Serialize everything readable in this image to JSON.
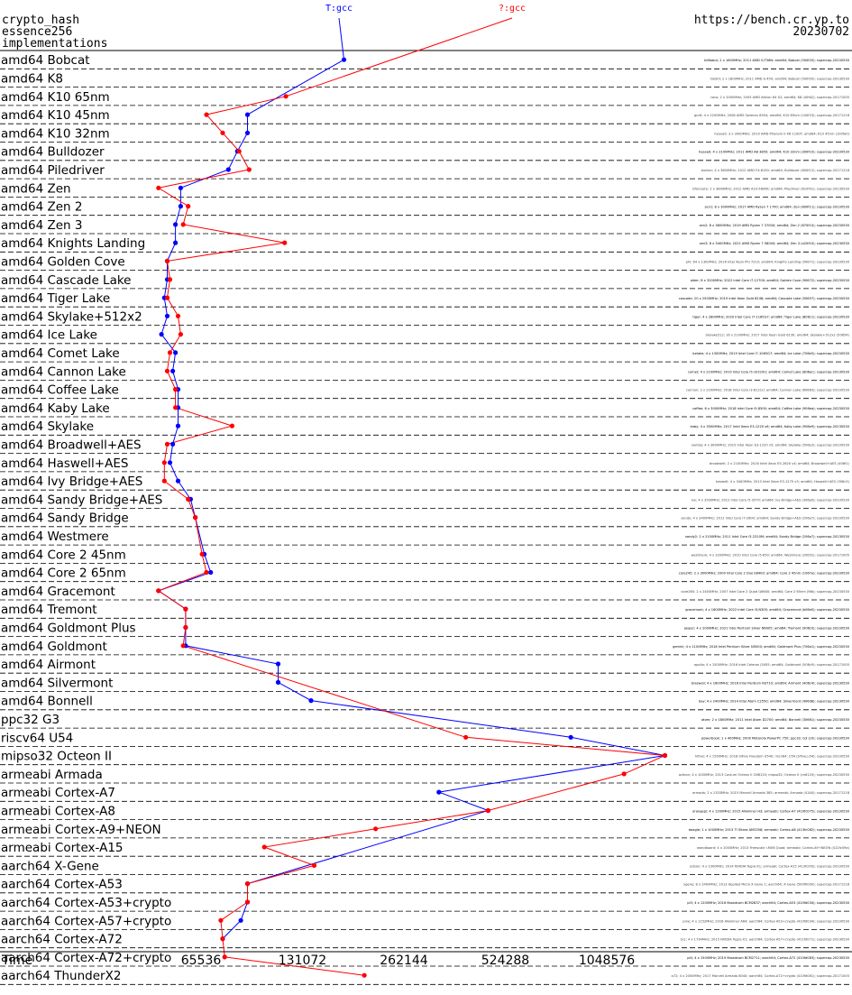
{
  "header": {
    "left_lines": [
      "crypto_hash",
      "essence256",
      "implementations"
    ],
    "right_lines": [
      "https://bench.cr.yp.to",
      "20230702"
    ]
  },
  "chart_data": {
    "type": "scatter",
    "x_scale": "log2",
    "xlabel": "Time",
    "x_ticks": [
      65536,
      131072,
      262144,
      524288,
      1048576
    ],
    "x_range": [
      32768,
      2097152
    ],
    "series": [
      {
        "name": "T:gcc",
        "color": "#0000ff"
      },
      {
        "name": "?:gcc",
        "color": "#ff0000"
      }
    ],
    "platforms": [
      {
        "label": "amd64 Bobcat",
        "best": 174000,
        "best_gcc": null
      },
      {
        "label": "amd64 K8",
        "best": null,
        "best_gcc": null
      },
      {
        "label": "amd64 K10 65nm",
        "best": null,
        "best_gcc": 117000
      },
      {
        "label": "amd64 K10 45nm",
        "best": 90000,
        "best_gcc": 68000
      },
      {
        "label": "amd64 K10 32nm",
        "best": 90000,
        "best_gcc": 76000
      },
      {
        "label": "amd64 Bulldozer",
        "best": 84000,
        "best_gcc": 85000
      },
      {
        "label": "amd64 Piledriver",
        "best": 79000,
        "best_gcc": 91000
      },
      {
        "label": "amd64 Zen",
        "best": 57000,
        "best_gcc": 49000
      },
      {
        "label": "amd64 Zen 2",
        "best": 57000,
        "best_gcc": 60000
      },
      {
        "label": "amd64 Zen 3",
        "best": 55000,
        "best_gcc": 58000
      },
      {
        "label": "amd64 Knights Landing",
        "best": 55000,
        "best_gcc": 116000
      },
      {
        "label": "amd64 Golden Cove",
        "best": 52000,
        "best_gcc": 52000
      },
      {
        "label": "amd64 Cascade Lake",
        "best": 52000,
        "best_gcc": 53000
      },
      {
        "label": "amd64 Tiger Lake",
        "best": 51000,
        "best_gcc": 52000
      },
      {
        "label": "amd64 Skylake+512x2",
        "best": 52000,
        "best_gcc": 56000
      },
      {
        "label": "amd64 Ice Lake",
        "best": 50000,
        "best_gcc": 57000
      },
      {
        "label": "amd64 Comet Lake",
        "best": 55000,
        "best_gcc": 53000
      },
      {
        "label": "amd64 Cannon Lake",
        "best": 54000,
        "best_gcc": 52000
      },
      {
        "label": "amd64 Coffee Lake",
        "best": 56000,
        "best_gcc": 55000
      },
      {
        "label": "amd64 Kaby Lake",
        "best": 56000,
        "best_gcc": 55000
      },
      {
        "label": "amd64 Skylake",
        "best": 56000,
        "best_gcc": 81000
      },
      {
        "label": "amd64 Broadwell+AES",
        "best": 54000,
        "best_gcc": 52000
      },
      {
        "label": "amd64 Haswell+AES",
        "best": 53000,
        "best_gcc": 51000
      },
      {
        "label": "amd64 Ivy Bridge+AES",
        "best": 56000,
        "best_gcc": 51000
      },
      {
        "label": "amd64 Sandy Bridge+AES",
        "best": 61000,
        "best_gcc": 60000
      },
      {
        "label": "amd64 Sandy Bridge",
        "best": 63000,
        "best_gcc": 63000
      },
      {
        "label": "amd64 Westmere",
        "best": null,
        "best_gcc": null
      },
      {
        "label": "amd64 Core 2 45nm",
        "best": 67000,
        "best_gcc": 66000
      },
      {
        "label": "amd64 Core 2 65nm",
        "best": 70000,
        "best_gcc": 68000
      },
      {
        "label": "amd64 Gracemont",
        "best": 49000,
        "best_gcc": 49000
      },
      {
        "label": "amd64 Tremont",
        "best": 59000,
        "best_gcc": 59000
      },
      {
        "label": "amd64 Goldmont Plus",
        "best": 59000,
        "best_gcc": 59000
      },
      {
        "label": "amd64 Goldmont",
        "best": 59000,
        "best_gcc": 58000
      },
      {
        "label": "amd64 Airmont",
        "best": 111000,
        "best_gcc": null
      },
      {
        "label": "amd64 Silvermont",
        "best": 111000,
        "best_gcc": null
      },
      {
        "label": "amd64 Bonnell",
        "best": 139000,
        "best_gcc": null
      },
      {
        "label": "ppc32 G3",
        "best": null,
        "best_gcc": null
      },
      {
        "label": "riscv64 U54",
        "best": 820000,
        "best_gcc": 400000
      },
      {
        "label": "mipso32 Octeon II",
        "best": 1560000,
        "best_gcc": 1560000
      },
      {
        "label": "armeabi Armada",
        "best": null,
        "best_gcc": 1180000
      },
      {
        "label": "armeabi Cortex-A7",
        "best": 333000,
        "best_gcc": null
      },
      {
        "label": "armeabi Cortex-A8",
        "best": 466000,
        "best_gcc": 466000
      },
      {
        "label": "armeabi Cortex-A9+NEON",
        "best": null,
        "best_gcc": 216000
      },
      {
        "label": "armeabi Cortex-A15",
        "best": null,
        "best_gcc": 101000
      },
      {
        "label": "aarch64 X-Gene",
        "best": null,
        "best_gcc": 142000
      },
      {
        "label": "aarch64 Cortex-A53",
        "best": 90000,
        "best_gcc": 90000
      },
      {
        "label": "aarch64 Cortex-A53+crypto",
        "best": 90000,
        "best_gcc": 90000
      },
      {
        "label": "aarch64 Cortex-A57+crypto",
        "best": 86000,
        "best_gcc": 75000
      },
      {
        "label": "aarch64 Cortex-A72",
        "best": 76000,
        "best_gcc": 76000
      },
      {
        "label": "aarch64 Cortex-A72+crypto",
        "best": null,
        "best_gcc": 77000
      },
      {
        "label": "aarch64 ThunderX2",
        "best": null,
        "best_gcc": 200000
      }
    ],
    "details": [
      {
        "text": "bll6abut; 2 x 1600MHz; 2011 AMD G-T56N; amd64; Bobcat (500f20); supercop-20230530",
        "tail_red": false
      },
      {
        "text": "hloS0l; 2 x 1800MHz; 2011 AMD E-450; amd64; Bobcat (500f20); supercop-20230530",
        "tail_red": true
      },
      {
        "text": "toco; 2 x 2000MHz; 2005 AMD Athlon 64 X2; amd64; K8 (40fb2); supercop-20171005",
        "tail_red": true
      },
      {
        "text": "gcc6; 4 x 2200MHz; 2008 AMD Opteron 8354; amd64; K10 65nm (100f23); supercop-20171218",
        "tail_red": true
      },
      {
        "text": "hyaxa9; 3 x 3000MHz; 2010 AMD Phenom II X6 1100T; amd64; K10 45nm (100fa0)",
        "tail_red": true
      },
      {
        "text": "hyaxa0; 4 x 2100MHz; 2011 AMD A8 3850; amd64; K10 32nm (300f10); supercop-20230530",
        "tail_red": false
      },
      {
        "text": "bunker; 4 x 3600MHz; 2012 AMD FX-8150; amd64; Bulldozer (600f12); supercop-20171218",
        "tail_red": true
      },
      {
        "text": "bforcesty; 2 x 3800MHz; 2012 AMD A10-5800K; amd64; Piledriver (610f01); supercop-20230530",
        "tail_red": true
      },
      {
        "text": "zen1; 8 x 3000MHz; 2017 AMD Ryzen 7 1700; amd64; Zen (800f11); supercop-20230530",
        "tail_red": false
      },
      {
        "text": "zen2; 8 x 3600MHz; 2019 AMD Ryzen 7 3700X; amd64; Zen 2 (870f10); supercop-20230530",
        "tail_red": false
      },
      {
        "text": "zen3; 8 x 3400MHz; 2021 AMD Ryzen 7 5800X; amd64; Zen 3 (a20f10); supercop-20230530",
        "tail_red": false
      },
      {
        "text": "phi; 64 x 1300MHz; 2016 Intel Xeon Phi 7210; amd64; Knights Landing (50671); supercop-20230530",
        "tail_red": true
      },
      {
        "text": "alder; 8 x 3200MHz; 2022 Intel Core i7-12700; amd64; Golden Cove (90672); supercop-20230530",
        "tail_red": false
      },
      {
        "text": "cascade; 20 x 2500MHz; 2019 Intel Xeon Gold 6248; amd64; Cascade Lake (50657); supercop-20230530",
        "tail_red": false
      },
      {
        "text": "tiger; 4 x 2800MHz; 2020 Intel Core i7-1165G7; amd64; Tiger Lake (806c1); supercop-20230530",
        "tail_red": false
      },
      {
        "text": "skylake512; 16 x 2100MHz; 2017 Intel Xeon Gold 6130; amd64; Skylake+512x2 (50654)",
        "tail_red": true
      },
      {
        "text": "icelake; 4 x 1300MHz; 2019 Intel Core i7-1065G7; amd64; Ice Lake (706e5); supercop-20230530",
        "tail_red": false
      },
      {
        "text": "comet; 4 x 2100MHz; 2019 Intel Core i5-10210U; amd64; Comet Lake (806ec); supercop-20230530",
        "tail_red": false
      },
      {
        "text": "cannon; 2 x 2200MHz; 2018 Intel Core i3-8121U; amd64; Cannon Lake (60663); supercop-20230530",
        "tail_red": true
      },
      {
        "text": "coffee; 6 x 3000MHz; 2018 Intel Core i5-8500; amd64; Coffee Lake (906ea); supercop-20230530",
        "tail_red": false
      },
      {
        "text": "kaby; 4 x 3500MHz; 2017 Intel Xeon E3-1220 v6; amd64; Kaby Lake (906e9); supercop-20230530",
        "tail_red": false
      },
      {
        "text": "samba; 4 x 3600MHz; 2015 Intel Xeon E3-1220 v5; amd64; Skylake (506e3); supercop-20230530",
        "tail_red": true
      },
      {
        "text": "broadwell; 2 x 2100MHz; 2016 Intel Xeon E5-2620 v4; amd64; Broadwell+AES (406f1)",
        "tail_red": true
      },
      {
        "text": "haswell; 4 x 3400MHz; 2013 Intel Xeon E3-1275 v3; amd64; Haswell+AES (306c3)",
        "tail_red": true
      },
      {
        "text": "ivy; 4 x 3500MHz; 2012 Intel Core i5-3570; amd64; Ivy Bridge+AES (306a9); supercop-20230530",
        "tail_red": true
      },
      {
        "text": "sandy; 4 x 3400MHz; 2011 Intel Core i7-2600; amd64; Sandy Bridge+AES (206a7); supercop-20230530",
        "tail_red": true
      },
      {
        "text": "sandy2; 2 x 2100MHz; 2011 Intel Core i3-2310M; amd64; Sandy Bridge (206a7); supercop-20230530",
        "tail_red": false
      },
      {
        "text": "westmere; 4 x 3200MHz; 2010 Intel Core i5-650; amd64; Westmere (20652); supercop-20171005",
        "tail_red": true
      },
      {
        "text": "core245; 2 x 3000MHz; 2009 Intel Core 2 Duo E8400; amd64; Core 2 45nm (1067a); supercop-20230530",
        "tail_red": false
      },
      {
        "text": "core265; 2 x 2400MHz; 2007 Intel Core 2 Quad Q6600; amd64; Core 2 65nm (6fb); supercop-20230530",
        "tail_red": true
      },
      {
        "text": "gracemont; 4 x 1600MHz; 2022 Intel Core i3-N305; amd64; Gracemont (b06e0); supercop-20230530",
        "tail_red": false
      },
      {
        "text": "jasper; 4 x 2000MHz; 2021 Intel Pentium Silver N6005; amd64; Tremont (906c0); supercop-20230530",
        "tail_red": false
      },
      {
        "text": "gemini; 4 x 1100MHz; 2018 Intel Pentium Silver N5000; amd64; Goldmont Plus (706a1); supercop-20230530",
        "tail_red": false
      },
      {
        "text": "apollo; 4 x 1500MHz; 2016 Intel Celeron J3455; amd64; Goldmont (506c9); supercop-20171005",
        "tail_red": true
      },
      {
        "text": "braswell; 4 x 1600MHz; 2016 Intel Pentium N3710; amd64; Airmont (406c4); supercop-20230530",
        "tail_red": false
      },
      {
        "text": "bay; 4 x 2400MHz; 2014 Intel Atom C2550; amd64; Silvermont (406d8); supercop-20230530",
        "tail_red": false
      },
      {
        "text": "atom; 2 x 1800MHz; 2011 Intel Atom D2700; amd64; Bonnell (30661); supercop-20230530",
        "tail_red": false
      },
      {
        "text": "powerbook; 1 x 400MHz; 2000 Motorola PowerPC 750; ppc32; G3 (c0); supercop-20230530",
        "tail_red": false
      },
      {
        "text": "hifive; 4 x 1500MHz; 2018 SiFive Freedom U540; riscv64; U54 (sifive,u54); supercop-20230530",
        "tail_red": true
      },
      {
        "text": "octeon; 4 x 1000MHz; 2013 Cavium Octeon II CN6120; mipso32; Octeon II (cn6120); supercop-20230530",
        "tail_red": true
      },
      {
        "text": "armada; 2 x 1333MHz; 2015 Marvell Armada 385; armeabi; Armada (41A0); supercop-20171218",
        "tail_red": true
      },
      {
        "text": "orangepi; 4 x 1200MHz; 2015 Allwinner H3; armeabi; Cortex-A7 (410fc075); supercop-20230530",
        "tail_red": false
      },
      {
        "text": "beagle; 1 x 1000MHz; 2013 TI Sitara AM3358; armeabi; Cortex-A8 (413fc082); supercop-20230530",
        "tail_red": false
      },
      {
        "text": "wandboard; 4 x 1000MHz; 2013 Freescale i.MX6 Quad; armeabi; Cortex-A9+NEON (412fc09a)",
        "tail_red": true
      },
      {
        "text": "jetson; 4 x 2300MHz; 2014 NVIDIA Tegra K1; armeabi; Cortex-A15 (413fc0f3); supercop-20230530",
        "tail_red": true
      },
      {
        "text": "xgene; 8 x 2400MHz; 2013 Applied Micro X-Gene 1; aarch64; X-Gene (500f0000); supercop-20171218",
        "tail_red": true
      },
      {
        "text": "pi3; 4 x 1200MHz; 2016 Broadcom BCM2837; aarch64; Cortex-A53 (410fd034); supercop-20230530",
        "tail_red": false
      },
      {
        "text": "pine; 4 x 1152MHz; 2016 Allwinner A64; aarch64; Cortex-A53+crypto (410fd034); supercop-20230530",
        "tail_red": true
      },
      {
        "text": "tx1; 4 x 1734MHz; 2015 NVIDIA Tegra X1; aarch64; Cortex-A57+crypto (411fd071); supercop-20230530",
        "tail_red": true
      },
      {
        "text": "pi4; 4 x 1500MHz; 2019 Broadcom BCM2711; aarch64; Cortex-A72 (410fd083); supercop-20230530",
        "tail_red": false
      },
      {
        "text": "a72; 4 x 2000MHz; 2017 Marvell Armada 8040; aarch64; Cortex-A72+crypto (410fd081); supercop-20171005",
        "tail_red": true
      },
      {
        "text": "thunderx2; 28 x 2500MHz; 2018 Cavium ThunderX2 CN9975; aarch64; ThunderX2 (431f0af1); supercop-20230530",
        "tail_red": true
      }
    ]
  }
}
